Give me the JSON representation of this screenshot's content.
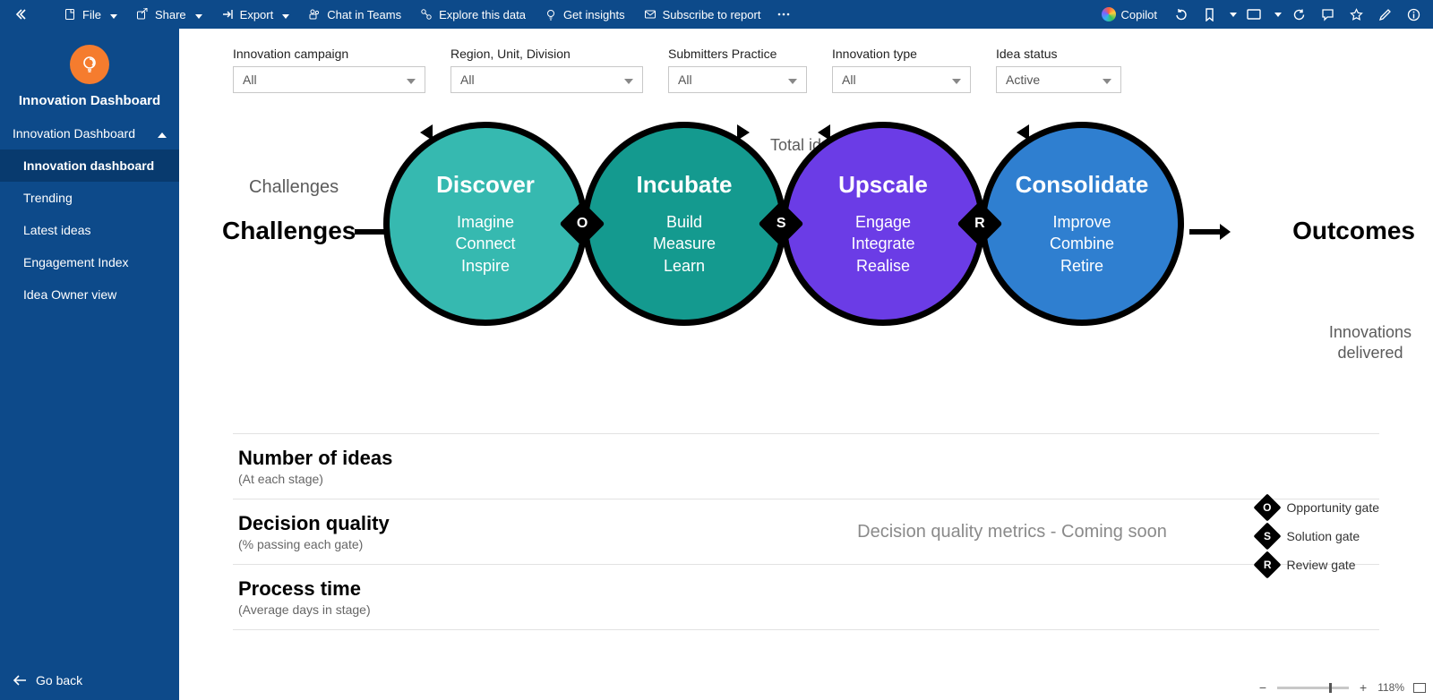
{
  "topbar": {
    "file": "File",
    "share": "Share",
    "export": "Export",
    "chat": "Chat in Teams",
    "explore": "Explore this data",
    "insights": "Get insights",
    "subscribe": "Subscribe to report",
    "copilot": "Copilot"
  },
  "sidebar": {
    "brand": "Innovation Dashboard",
    "section": "Innovation Dashboard",
    "items": [
      "Innovation dashboard",
      "Trending",
      "Latest ideas",
      "Engagement Index",
      "Idea Owner view"
    ],
    "goback": "Go back"
  },
  "filters": [
    {
      "label": "Innovation campaign",
      "value": "All"
    },
    {
      "label": "Region, Unit, Division",
      "value": "All"
    },
    {
      "label": "Submitters Practice",
      "value": "All"
    },
    {
      "label": "Innovation type",
      "value": "All"
    },
    {
      "label": "Idea status",
      "value": "Active"
    }
  ],
  "diagram": {
    "total_ideas": "Total ideas",
    "challenges_hint": "Challenges",
    "challenges": "Challenges",
    "outcomes": "Outcomes",
    "innov_delivered_l1": "Innovations",
    "innov_delivered_l2": "delivered",
    "stages": [
      {
        "title": "Discover",
        "subs": [
          "Imagine",
          "Connect",
          "Inspire"
        ],
        "fill": "#36b9b0",
        "arrowSide": "left"
      },
      {
        "title": "Incubate",
        "subs": [
          "Build",
          "Measure",
          "Learn"
        ],
        "fill": "#149a8f",
        "arrowSide": "right"
      },
      {
        "title": "Upscale",
        "subs": [
          "Engage",
          "Integrate",
          "Realise"
        ],
        "fill": "#6b3ce6",
        "arrowSide": "left"
      },
      {
        "title": "Consolidate",
        "subs": [
          "Improve",
          "Combine",
          "Retire"
        ],
        "fill": "#2f7fd0",
        "arrowSide": "left"
      }
    ],
    "gates": [
      {
        "letter": "O",
        "label": "Opportunity gate"
      },
      {
        "letter": "S",
        "label": "Solution gate"
      },
      {
        "letter": "R",
        "label": "Review gate"
      }
    ]
  },
  "metrics": [
    {
      "title": "Number of ideas",
      "sub": "(At each stage)",
      "body": ""
    },
    {
      "title": "Decision quality",
      "sub": "(% passing each gate)",
      "body": "Decision quality metrics - Coming soon"
    },
    {
      "title": "Process time",
      "sub": "(Average days in stage)",
      "body": ""
    }
  ],
  "status": {
    "zoom": "118%"
  }
}
